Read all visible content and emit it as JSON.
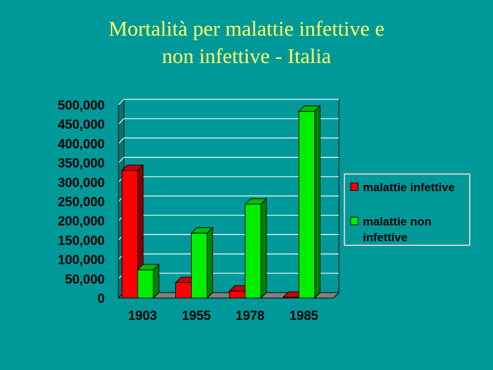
{
  "title": {
    "line1": "Mortalità per malattie infettive e",
    "line2": "non infettive - Italia"
  },
  "colors": {
    "background": "#009999",
    "title": "#ffff66",
    "infettive": "#ff0000",
    "non_infettive": "#00ee00"
  },
  "chart_data": {
    "type": "bar",
    "style": "3d-clustered",
    "categories": [
      "1903",
      "1955",
      "1978",
      "1985"
    ],
    "series": [
      {
        "name": "malattie infettive",
        "values": [
          330000,
          40000,
          18000,
          2000
        ]
      },
      {
        "name": "malattie non infettive",
        "values": [
          73000,
          168000,
          243000,
          483000
        ]
      }
    ],
    "ylim": [
      0,
      500000
    ],
    "yticks": [
      "0",
      "50,000",
      "100,000",
      "150,000",
      "200,000",
      "250,000",
      "300,000",
      "350,000",
      "400,000",
      "450,000",
      "500,000"
    ],
    "grid": true,
    "legend_position": "right",
    "legend": [
      {
        "lines": [
          "malattie infettive"
        ]
      },
      {
        "lines": [
          "malattie non",
          "infettive"
        ]
      }
    ]
  }
}
